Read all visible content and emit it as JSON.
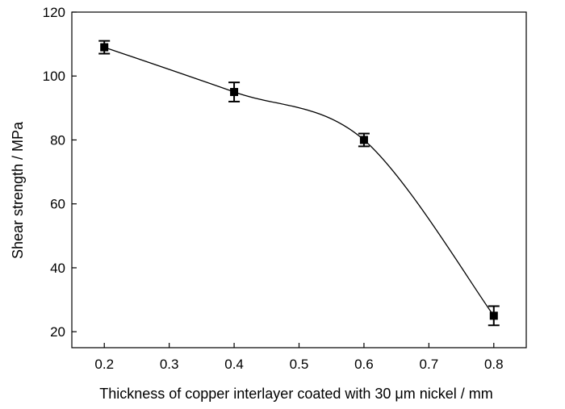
{
  "chart_data": {
    "type": "line",
    "xlabel": "Thickness of copper interlayer coated with 30 μm nickel / mm",
    "ylabel": "Shear strength / MPa",
    "xlim": [
      0.15,
      0.85
    ],
    "ylim": [
      15,
      120
    ],
    "x_ticks": [
      "0.2",
      "0.3",
      "0.4",
      "0.5",
      "0.6",
      "0.7",
      "0.8"
    ],
    "y_ticks": [
      "20",
      "40",
      "60",
      "80",
      "100",
      "120"
    ],
    "grid": false,
    "legend": "none",
    "marker": "square",
    "curve": "smooth",
    "colors": {
      "line": "#000000",
      "marker": "#000000"
    },
    "series": [
      {
        "x": [
          0.2,
          0.4,
          0.6,
          0.8
        ],
        "y": [
          109,
          95,
          80,
          25
        ],
        "error": [
          2,
          3,
          2,
          3
        ]
      }
    ]
  }
}
